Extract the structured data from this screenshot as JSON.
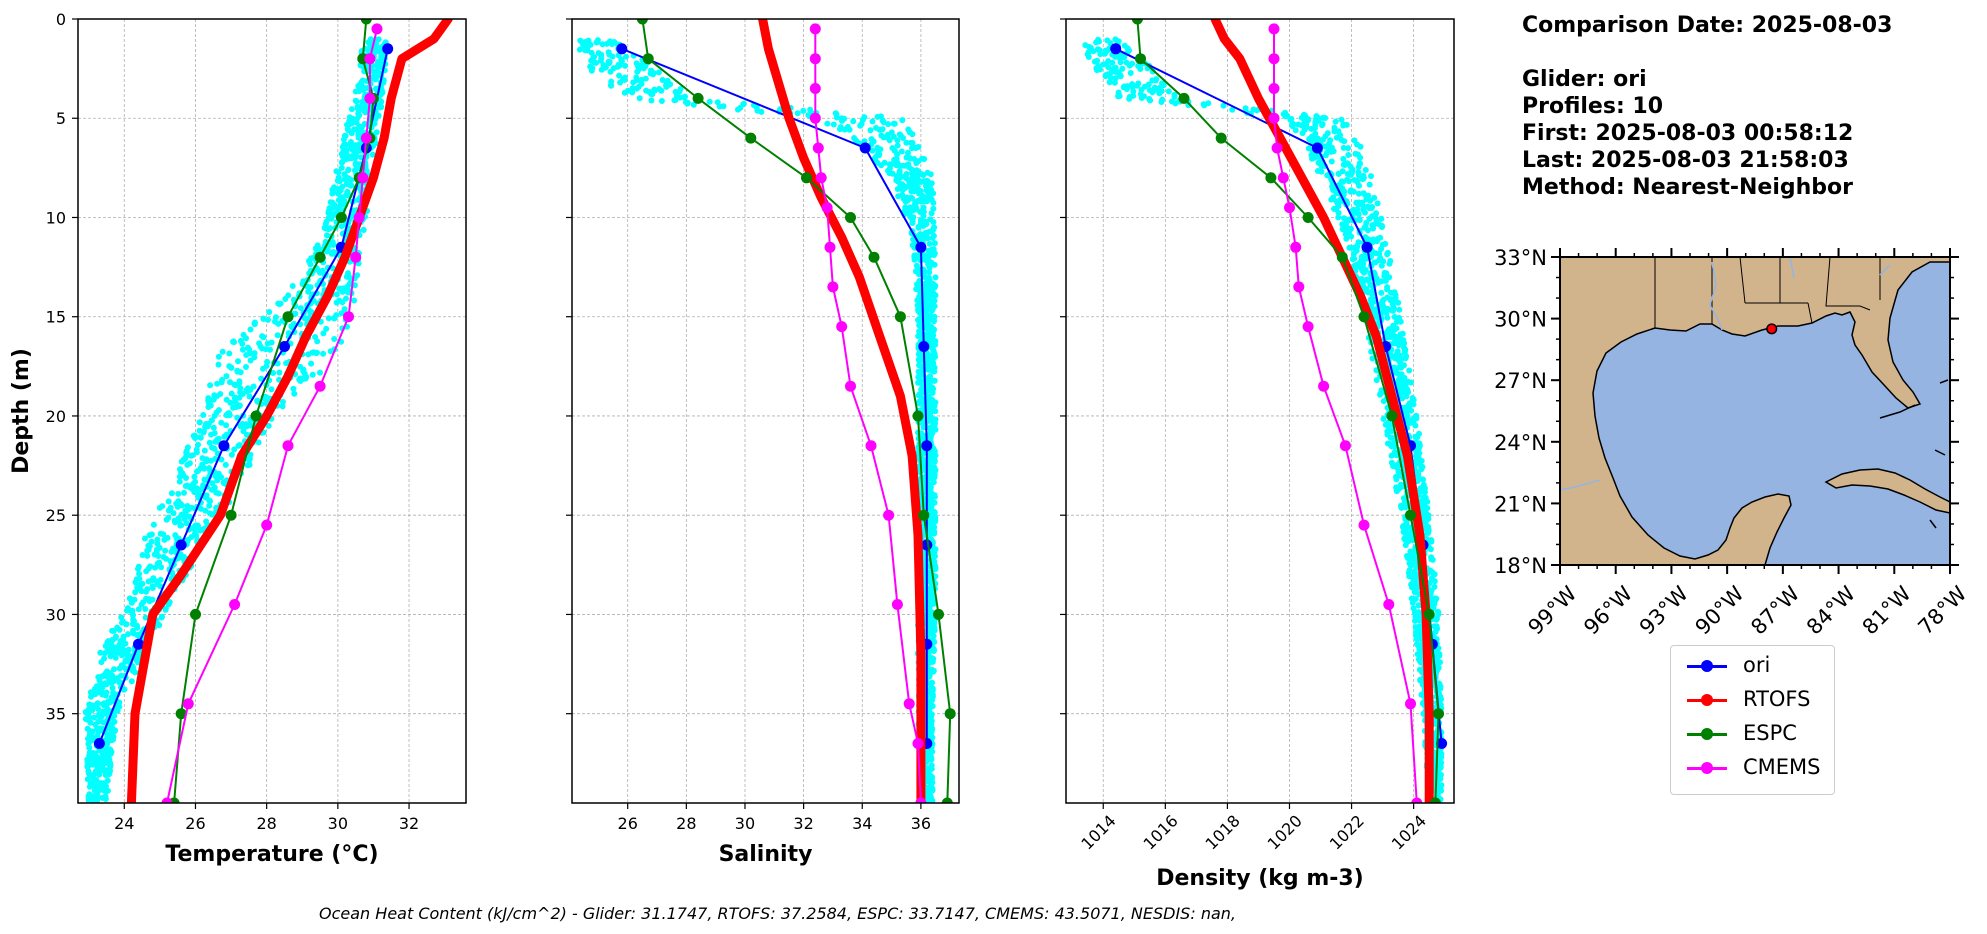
{
  "chart_data": [
    {
      "type": "line",
      "xlabel": "Temperature (°C)",
      "ylabel": "Depth (m)",
      "xlim": [
        22.7,
        33.6
      ],
      "ylim": [
        39.5,
        0
      ],
      "xticks": [
        24,
        26,
        28,
        30,
        32
      ],
      "yticks": [
        0,
        5,
        10,
        15,
        20,
        25,
        30,
        35
      ],
      "grid": true,
      "glider_scatter": {
        "name": "glider profiles",
        "color": "#00ffff",
        "band": [
          {
            "depth": 1,
            "min": 30.7,
            "max": 31.4
          },
          {
            "depth": 3,
            "min": 30.6,
            "max": 31.3
          },
          {
            "depth": 5,
            "min": 30.3,
            "max": 31.2
          },
          {
            "depth": 7,
            "min": 30.0,
            "max": 31.0
          },
          {
            "depth": 10,
            "min": 29.7,
            "max": 30.8
          },
          {
            "depth": 13,
            "min": 29.0,
            "max": 30.6
          },
          {
            "depth": 15,
            "min": 27.8,
            "max": 30.5
          },
          {
            "depth": 17,
            "min": 26.6,
            "max": 30.0
          },
          {
            "depth": 20,
            "min": 26.2,
            "max": 28.2
          },
          {
            "depth": 23,
            "min": 25.4,
            "max": 27.4
          },
          {
            "depth": 26,
            "min": 24.6,
            "max": 26.4
          },
          {
            "depth": 29,
            "min": 24.2,
            "max": 25.4
          },
          {
            "depth": 32,
            "min": 23.3,
            "max": 24.6
          },
          {
            "depth": 35,
            "min": 22.9,
            "max": 23.8
          },
          {
            "depth": 39.5,
            "min": 23.0,
            "max": 23.5
          }
        ]
      },
      "series": [
        {
          "name": "ori",
          "color": "#0000ff",
          "width": 2,
          "markers": true,
          "x": [
            31.4,
            30.8,
            30.1,
            28.5,
            26.8,
            25.6,
            24.4,
            23.3
          ],
          "y": [
            1.5,
            6.5,
            11.5,
            16.5,
            21.5,
            26.5,
            31.5,
            36.5
          ]
        },
        {
          "name": "RTOFS",
          "color": "#ff0000",
          "width": 9,
          "markers": false,
          "x": [
            33.1,
            32.7,
            31.8,
            31.5,
            31.3,
            31.0,
            30.6,
            30.2,
            29.7,
            29.1,
            28.6,
            28.0,
            27.3,
            26.7,
            25.6,
            24.8,
            24.3,
            24.2
          ],
          "y": [
            0,
            1,
            2,
            4,
            6,
            8,
            10,
            12,
            14,
            16,
            18,
            20,
            22,
            25,
            28,
            30,
            35,
            39.5
          ]
        },
        {
          "name": "ESPC",
          "color": "#008000",
          "width": 2,
          "markers": true,
          "x": [
            30.8,
            30.7,
            31.0,
            30.9,
            30.6,
            30.1,
            29.5,
            28.6,
            27.7,
            27.0,
            26.0,
            25.6,
            25.4
          ],
          "y": [
            0,
            2,
            4,
            6,
            8,
            10,
            12,
            15,
            20,
            25,
            30,
            35,
            39.5
          ]
        },
        {
          "name": "CMEMS",
          "color": "#ff00ff",
          "width": 2,
          "markers": true,
          "x": [
            31.1,
            30.9,
            30.9,
            30.8,
            30.7,
            30.6,
            30.5,
            30.3,
            29.5,
            28.6,
            28.0,
            27.1,
            25.8,
            25.2
          ],
          "y": [
            0.5,
            2,
            4,
            6,
            8,
            10,
            12,
            15,
            18.5,
            21.5,
            25.5,
            29.5,
            34.5,
            39.5
          ]
        }
      ]
    },
    {
      "type": "line",
      "xlabel": "Salinity",
      "ylabel": "",
      "xlim": [
        24.1,
        37.3
      ],
      "ylim": [
        39.5,
        0
      ],
      "xticks": [
        26,
        28,
        30,
        32,
        34,
        36
      ],
      "yticks": [
        0,
        5,
        10,
        15,
        20,
        25,
        30,
        35
      ],
      "grid": true,
      "glider_scatter": {
        "name": "glider profiles",
        "color": "#00ffff",
        "band": [
          {
            "depth": 1,
            "min": 24.2,
            "max": 25.4
          },
          {
            "depth": 2,
            "min": 24.4,
            "max": 26.6
          },
          {
            "depth": 3,
            "min": 25.0,
            "max": 27.4
          },
          {
            "depth": 4,
            "min": 26.0,
            "max": 28.2
          },
          {
            "depth": 5,
            "min": 32.5,
            "max": 35.4
          },
          {
            "depth": 6,
            "min": 33.6,
            "max": 35.8
          },
          {
            "depth": 8,
            "min": 35.0,
            "max": 36.4
          },
          {
            "depth": 11,
            "min": 35.7,
            "max": 36.5
          },
          {
            "depth": 15,
            "min": 35.9,
            "max": 36.5
          },
          {
            "depth": 20,
            "min": 35.9,
            "max": 36.5
          },
          {
            "depth": 25,
            "min": 35.9,
            "max": 36.5
          },
          {
            "depth": 30,
            "min": 35.9,
            "max": 36.5
          },
          {
            "depth": 35,
            "min": 35.9,
            "max": 36.4
          },
          {
            "depth": 39.5,
            "min": 36.0,
            "max": 36.4
          }
        ]
      },
      "series": [
        {
          "name": "ori",
          "color": "#0000ff",
          "width": 2,
          "markers": true,
          "x": [
            25.8,
            34.1,
            36.0,
            36.1,
            36.2,
            36.2,
            36.2,
            36.2
          ],
          "y": [
            1.5,
            6.5,
            11.5,
            16.5,
            21.5,
            26.5,
            31.5,
            36.5
          ]
        },
        {
          "name": "RTOFS",
          "color": "#ff0000",
          "width": 9,
          "markers": false,
          "x": [
            30.6,
            30.8,
            31.1,
            31.5,
            32.0,
            32.6,
            33.3,
            33.9,
            34.6,
            35.3,
            35.7,
            35.9,
            36.0,
            36.0
          ],
          "y": [
            0,
            1.5,
            3,
            5,
            7,
            9,
            11,
            13,
            16,
            19,
            22,
            26,
            32,
            39.5
          ]
        },
        {
          "name": "ESPC",
          "color": "#008000",
          "width": 2,
          "markers": true,
          "x": [
            26.5,
            26.7,
            28.4,
            30.2,
            32.1,
            33.6,
            34.4,
            35.3,
            35.9,
            36.1,
            36.6,
            37.0,
            36.9
          ],
          "y": [
            0,
            2,
            4,
            6,
            8,
            10,
            12,
            15,
            20,
            25,
            30,
            35,
            39.5
          ]
        },
        {
          "name": "CMEMS",
          "color": "#ff00ff",
          "width": 2,
          "markers": true,
          "x": [
            32.4,
            32.4,
            32.4,
            32.4,
            32.5,
            32.6,
            32.8,
            32.9,
            33.0,
            33.3,
            33.6,
            34.3,
            34.9,
            35.2,
            35.6,
            35.9,
            36.0
          ],
          "y": [
            0.5,
            2,
            3.5,
            5,
            6.5,
            8,
            9.5,
            11.5,
            13.5,
            15.5,
            18.5,
            21.5,
            25,
            29.5,
            34.5,
            36.5,
            39.5
          ]
        }
      ]
    },
    {
      "type": "line",
      "xlabel": "Density (kg m-3)",
      "ylabel": "",
      "xlim": [
        1012.8,
        1025.3
      ],
      "ylim": [
        39.5,
        0
      ],
      "xticks": [
        1014,
        1016,
        1018,
        1020,
        1022,
        1024
      ],
      "yticks": [
        0,
        5,
        10,
        15,
        20,
        25,
        30,
        35
      ],
      "grid": true,
      "glider_scatter": {
        "name": "glider profiles",
        "color": "#00ffff",
        "band": [
          {
            "depth": 1,
            "min": 1013.3,
            "max": 1014.4
          },
          {
            "depth": 2,
            "min": 1013.5,
            "max": 1015.3
          },
          {
            "depth": 3,
            "min": 1014.0,
            "max": 1015.9
          },
          {
            "depth": 4,
            "min": 1014.5,
            "max": 1016.4
          },
          {
            "depth": 5,
            "min": 1019.8,
            "max": 1021.7
          },
          {
            "depth": 6,
            "min": 1020.4,
            "max": 1022.2
          },
          {
            "depth": 8,
            "min": 1021.0,
            "max": 1022.7
          },
          {
            "depth": 11,
            "min": 1021.8,
            "max": 1023.1
          },
          {
            "depth": 15,
            "min": 1022.4,
            "max": 1023.6
          },
          {
            "depth": 20,
            "min": 1023.0,
            "max": 1024.1
          },
          {
            "depth": 25,
            "min": 1023.6,
            "max": 1024.5
          },
          {
            "depth": 30,
            "min": 1024.0,
            "max": 1024.8
          },
          {
            "depth": 35,
            "min": 1024.3,
            "max": 1024.9
          },
          {
            "depth": 39.5,
            "min": 1024.5,
            "max": 1024.9
          }
        ]
      },
      "series": [
        {
          "name": "ori",
          "color": "#0000ff",
          "width": 2,
          "markers": true,
          "x": [
            1014.4,
            1020.9,
            1022.5,
            1023.1,
            1023.9,
            1024.3,
            1024.6,
            1024.9
          ],
          "y": [
            1.5,
            6.5,
            11.5,
            16.5,
            21.5,
            26.5,
            31.5,
            36.5
          ]
        },
        {
          "name": "RTOFS",
          "color": "#ff0000",
          "width": 9,
          "markers": false,
          "x": [
            1017.6,
            1017.9,
            1018.4,
            1019.0,
            1019.7,
            1020.4,
            1021.1,
            1021.7,
            1022.3,
            1022.8,
            1023.3,
            1023.8,
            1024.2,
            1024.4,
            1024.5,
            1024.5
          ],
          "y": [
            0,
            1,
            2,
            4,
            6,
            8,
            10,
            12,
            14,
            16,
            19,
            22,
            26,
            30,
            35,
            39.5
          ]
        },
        {
          "name": "ESPC",
          "color": "#008000",
          "width": 2,
          "markers": true,
          "x": [
            1015.1,
            1015.2,
            1016.6,
            1017.8,
            1019.4,
            1020.6,
            1021.7,
            1022.4,
            1023.3,
            1023.9,
            1024.5,
            1024.8,
            1024.7
          ],
          "y": [
            0,
            2,
            4,
            6,
            8,
            10,
            12,
            15,
            20,
            25,
            30,
            35,
            39.5
          ]
        },
        {
          "name": "CMEMS",
          "color": "#ff00ff",
          "width": 2,
          "markers": true,
          "x": [
            1019.5,
            1019.5,
            1019.5,
            1019.5,
            1019.6,
            1019.8,
            1020.0,
            1020.2,
            1020.3,
            1020.6,
            1021.1,
            1021.8,
            1022.4,
            1023.2,
            1023.9,
            1024.1
          ],
          "y": [
            0.5,
            2,
            3.5,
            5,
            6.5,
            8,
            9.5,
            11.5,
            13.5,
            15.5,
            18.5,
            21.5,
            25.5,
            29.5,
            34.5,
            39.5
          ]
        }
      ]
    }
  ],
  "info": {
    "comparison_date": "Comparison Date: 2025-08-03",
    "glider": "Glider: ori",
    "profiles": "Profiles: 10",
    "first": "First: 2025-08-03 00:58:12",
    "last": "Last: 2025-08-03 21:58:03",
    "method": "Method: Nearest-Neighbor"
  },
  "map": {
    "lat_labels": [
      "33°N",
      "30°N",
      "27°N",
      "24°N",
      "21°N",
      "18°N"
    ],
    "lon_labels": [
      "99°W",
      "96°W",
      "93°W",
      "90°W",
      "87°W",
      "84°W",
      "81°W",
      "78°W"
    ],
    "lat_range": [
      18,
      33
    ],
    "lon_range": [
      -99,
      -78
    ],
    "glider_location": {
      "lon": -87.6,
      "lat": 29.5
    },
    "land_color": "#d2b48c",
    "water_color": "#96b4e1"
  },
  "legend": [
    {
      "label": "ori",
      "color": "#0000ff"
    },
    {
      "label": "RTOFS",
      "color": "#ff0000"
    },
    {
      "label": "ESPC",
      "color": "#008000"
    },
    {
      "label": "CMEMS",
      "color": "#ff00ff"
    }
  ],
  "footer": "Ocean Heat Content (kJ/cm^2) - Glider: 31.1747,  RTOFS: 37.2584,  ESPC: 33.7147,  CMEMS: 43.5071,  NESDIS: nan,"
}
